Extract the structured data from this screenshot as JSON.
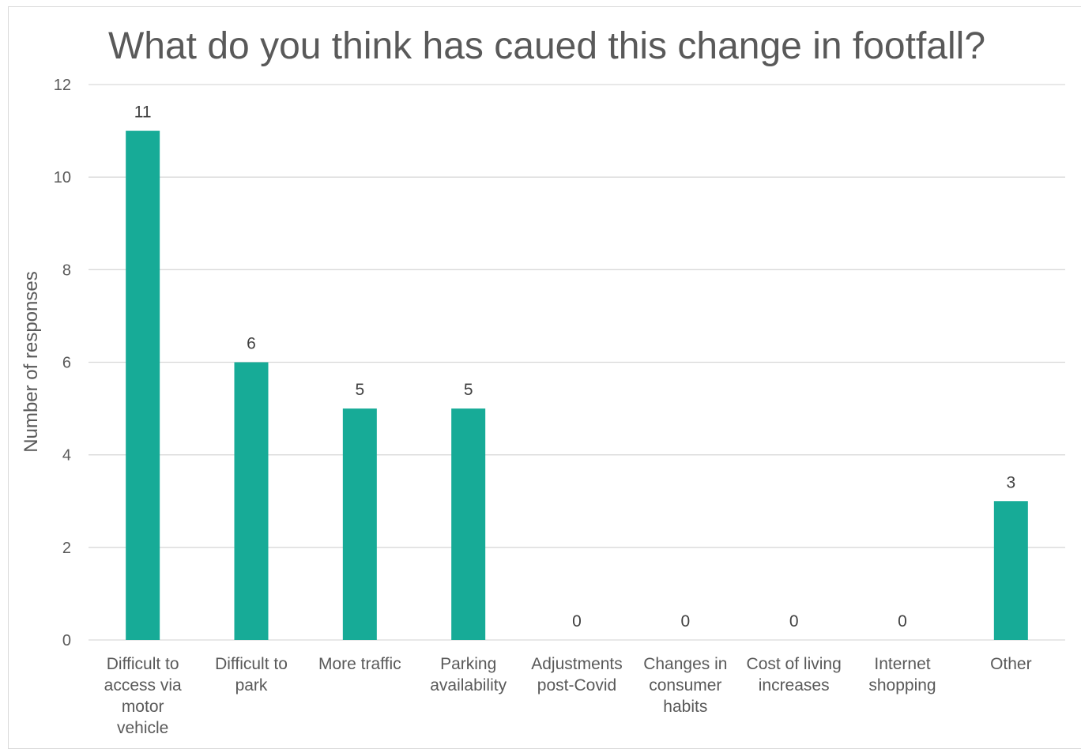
{
  "chart_data": {
    "type": "bar",
    "title": "What do you think has caued this change in footfall?",
    "ylabel": "Number of responses",
    "xlabel": "",
    "ylim": [
      0,
      12
    ],
    "yticks": [
      0,
      2,
      4,
      6,
      8,
      10,
      12
    ],
    "grid": true,
    "bar_color": "#17ab97",
    "categories": [
      [
        "Difficult to",
        "access via",
        "motor",
        "vehicle"
      ],
      [
        "Difficult to",
        "park"
      ],
      [
        "More traffic"
      ],
      [
        "Parking",
        "availability"
      ],
      [
        "Adjustments",
        "post-Covid"
      ],
      [
        "Changes in",
        "consumer",
        "habits"
      ],
      [
        "Cost of living",
        "increases"
      ],
      [
        "Internet",
        "shopping"
      ],
      [
        "Other"
      ]
    ],
    "values": [
      11,
      6,
      5,
      5,
      0,
      0,
      0,
      0,
      3
    ]
  }
}
